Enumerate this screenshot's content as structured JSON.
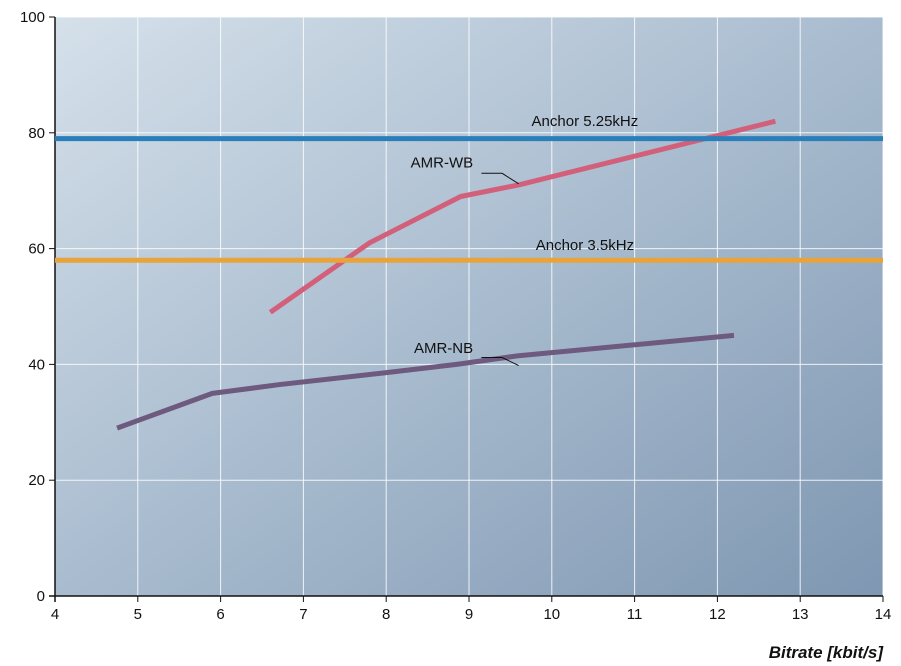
{
  "chart_data": {
    "type": "line",
    "title": "",
    "xlabel": "Bitrate [kbit/s]",
    "ylabel": "",
    "xlim": [
      4,
      14
    ],
    "ylim": [
      0,
      100
    ],
    "x_ticks": [
      4,
      5,
      6,
      7,
      8,
      9,
      10,
      11,
      12,
      13,
      14
    ],
    "y_ticks": [
      0,
      20,
      40,
      60,
      80,
      100
    ],
    "grid": true,
    "series": [
      {
        "name": "AMR-WB",
        "color": "#d2607a",
        "x": [
          6.6,
          7.8,
          8.9,
          9.6,
          12.7
        ],
        "y": [
          49,
          61,
          69,
          71,
          82
        ]
      },
      {
        "name": "AMR-NB",
        "color": "#6e5a7e",
        "x": [
          4.75,
          5.9,
          6.7,
          7.95,
          8.85,
          9.6,
          12.2
        ],
        "y": [
          29,
          35,
          36.5,
          38.5,
          40,
          41.5,
          45
        ]
      },
      {
        "name": "Anchor 5.25kHz",
        "color": "#2a7fbb",
        "x": [
          4,
          14
        ],
        "y": [
          79,
          79
        ]
      },
      {
        "name": "Anchor 3.5kHz",
        "color": "#e8a33a",
        "x": [
          4,
          14
        ],
        "y": [
          58,
          58
        ]
      }
    ]
  }
}
